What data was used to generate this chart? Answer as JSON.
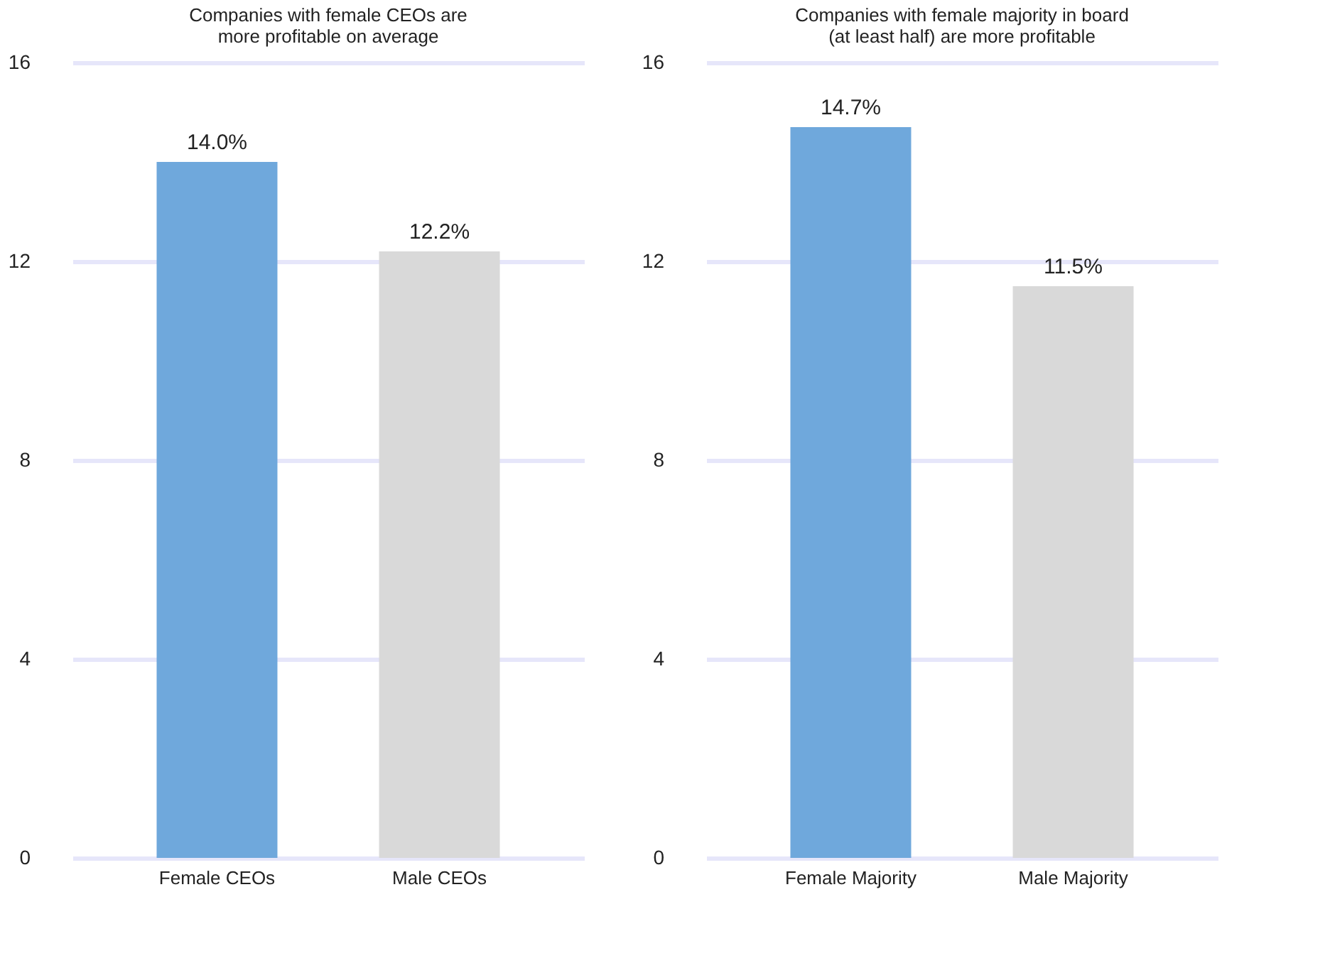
{
  "chart_data": [
    {
      "type": "bar",
      "title": "Companies with female CEOs are\nmore profitable on average",
      "categories": [
        "Female CEOs",
        "Male CEOs"
      ],
      "values": [
        14.0,
        12.2
      ],
      "colors": [
        "#6fa8dc",
        "#d9d9d9"
      ],
      "value_labels": [
        "14.0%",
        "12.2%"
      ],
      "ylim": [
        0,
        16
      ],
      "yticks": [
        0,
        4,
        8,
        12,
        16
      ],
      "grid": "y"
    },
    {
      "type": "bar",
      "title": "Companies with female majority in board\n(at least half) are more profitable",
      "categories": [
        "Female Majority",
        "Male Majority"
      ],
      "values": [
        14.7,
        11.5
      ],
      "colors": [
        "#6fa8dc",
        "#d9d9d9"
      ],
      "value_labels": [
        "14.7%",
        "11.5%"
      ],
      "ylim": [
        0,
        16
      ],
      "yticks": [
        0,
        4,
        8,
        12,
        16
      ],
      "grid": "y"
    }
  ]
}
